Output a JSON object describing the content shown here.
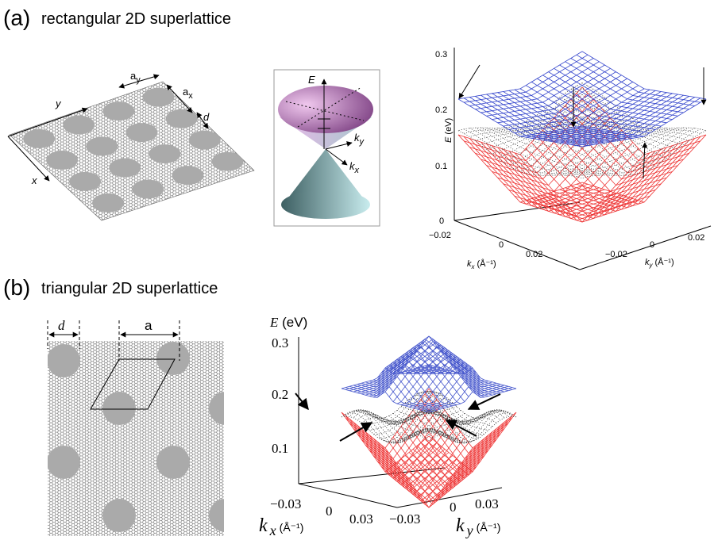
{
  "panel_a": {
    "label": "(a)",
    "title": "rectangular 2D superlattice",
    "lattice": {
      "ay_main": "a",
      "ay_sub": "y",
      "ax_main": "a",
      "ax_sub": "x",
      "d": "d",
      "y_axis": "y",
      "x_axis": "x"
    },
    "cone": {
      "E": "E",
      "ky_main": "k",
      "ky_sub": "y",
      "kx_main": "k",
      "kx_sub": "x"
    },
    "plot": {
      "E_label": "E",
      "E_unit": "(eV)",
      "E_ticks": [
        "0.3",
        "0.2",
        "0.1",
        "0"
      ],
      "kx_ticks": [
        "−0.02",
        "0",
        "0.02"
      ],
      "ky_ticks": [
        "−0.02",
        "0",
        "0.02"
      ],
      "kx_label": {
        "main": "k",
        "sub": "x",
        "unit": "(Å⁻¹)"
      },
      "ky_label": {
        "main": "k",
        "sub": "y",
        "unit": "(Å⁻¹)"
      }
    }
  },
  "panel_b": {
    "label": "(b)",
    "title": "triangular 2D superlattice",
    "lattice": {
      "d": "d",
      "a": "a"
    },
    "plot": {
      "E_label": "E",
      "E_unit": "(eV)",
      "E_ticks": [
        "0.3",
        "0.2",
        "0.1"
      ],
      "kx_ticks": [
        "−0.03",
        "0",
        "0.03"
      ],
      "ky_ticks": [
        "−0.03",
        "0",
        "0.03"
      ],
      "kx_label": {
        "main": "k",
        "sub": "x",
        "unit": "(Å⁻¹)"
      },
      "ky_label": {
        "main": "k",
        "sub": "y",
        "unit": "(Å⁻¹)"
      }
    }
  }
}
